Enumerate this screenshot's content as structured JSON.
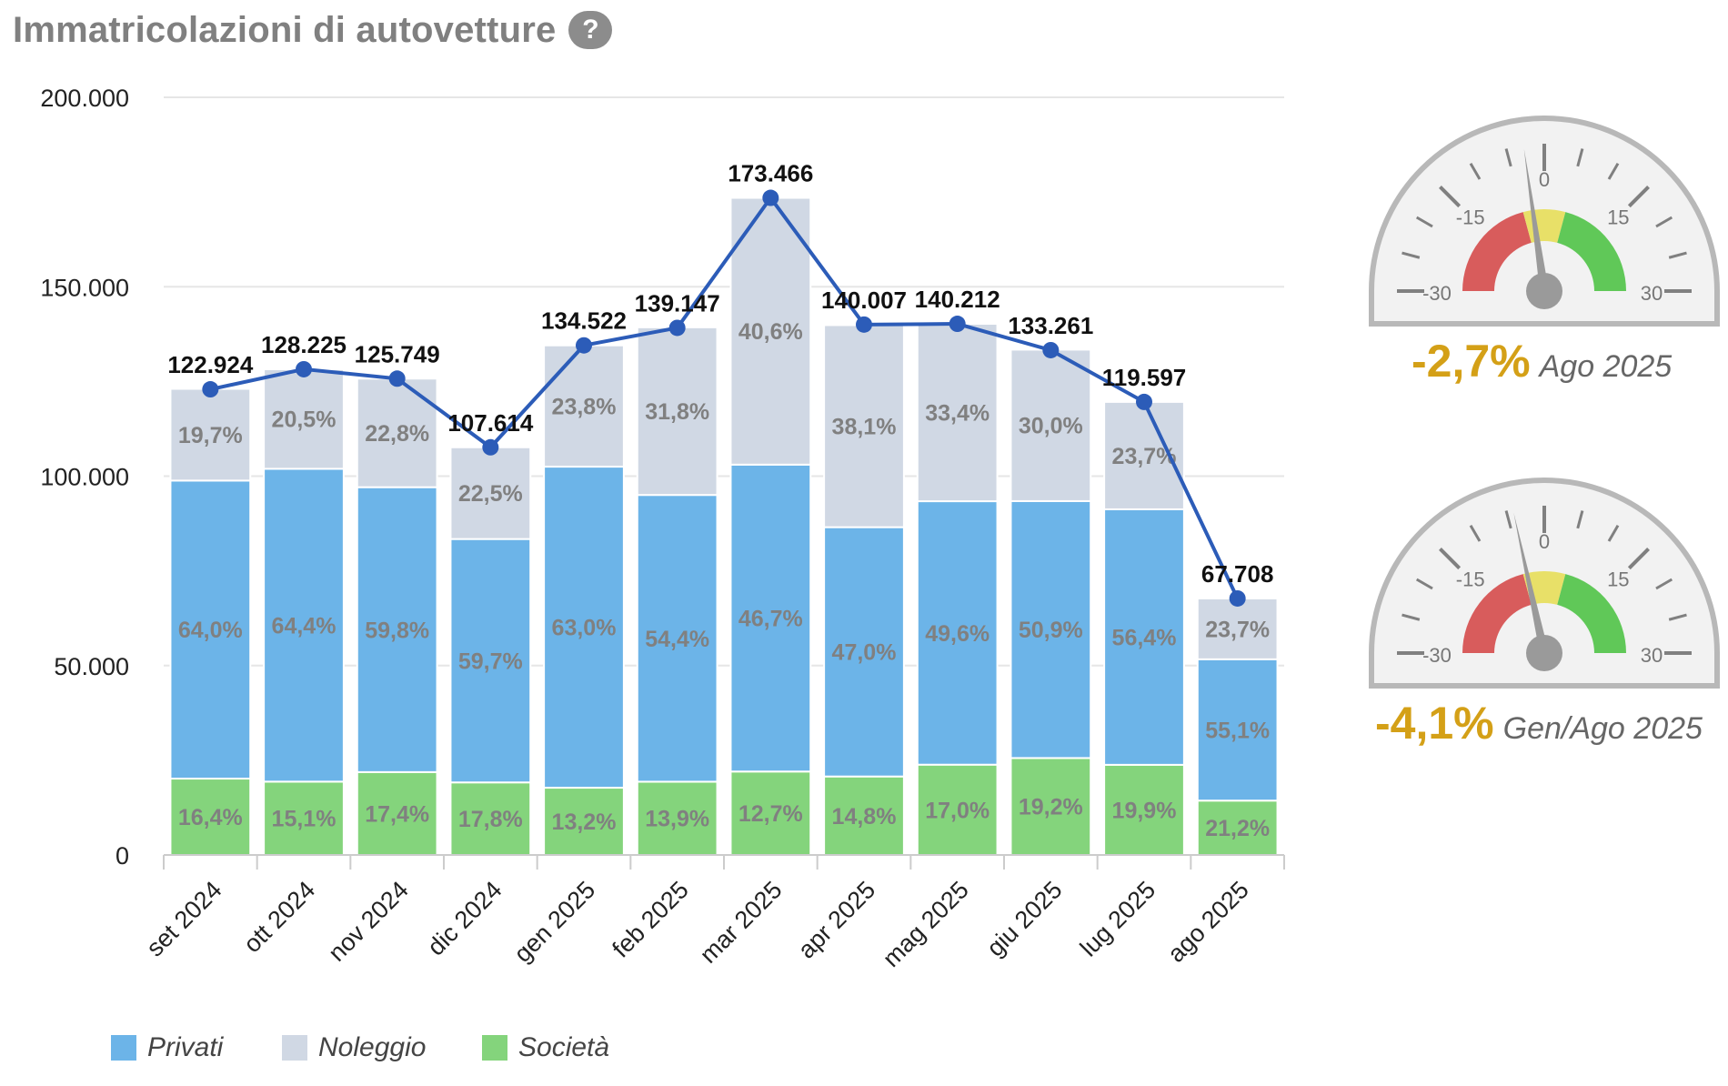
{
  "title": "Immatricolazioni di autovetture",
  "help_label": "?",
  "colors": {
    "privati": "#6cb4e8",
    "noleggio": "#d0d8e4",
    "societa": "#84d47c",
    "line": "#2c5cb8",
    "axis_text": "#222222",
    "pct_text": "#808080",
    "gauge_red": "#d85c5c",
    "gauge_yellow": "#e8e068",
    "gauge_green": "#60c858",
    "caption_pct": "#d4a017"
  },
  "legend": [
    {
      "label": "Privati",
      "color": "#6cb4e8"
    },
    {
      "label": "Noleggio",
      "color": "#d0d8e4"
    },
    {
      "label": "Società",
      "color": "#84d47c"
    }
  ],
  "chart_data": {
    "type": "bar",
    "stacked": true,
    "categories": [
      "set 2024",
      "ott 2024",
      "nov 2024",
      "dic 2024",
      "gen 2025",
      "feb 2025",
      "mar 2025",
      "apr 2025",
      "mag 2025",
      "giu 2025",
      "lug 2025",
      "ago 2025"
    ],
    "totals": [
      122924,
      128225,
      125749,
      107614,
      134522,
      139147,
      173466,
      140007,
      140212,
      133261,
      119597,
      67708
    ],
    "total_labels": [
      "122.924",
      "128.225",
      "125.749",
      "107.614",
      "134.522",
      "139.147",
      "173.466",
      "140.007",
      "140.212",
      "133.261",
      "119.597",
      "67.708"
    ],
    "series": [
      {
        "name": "Privati",
        "percents": [
          64.0,
          64.4,
          59.8,
          59.7,
          63.0,
          54.4,
          46.7,
          47.0,
          49.6,
          50.9,
          56.4,
          55.1
        ],
        "labels": [
          "64,0%",
          "64,4%",
          "59,8%",
          "59,7%",
          "63,0%",
          "54,4%",
          "46,7%",
          "47,0%",
          "49,6%",
          "50,9%",
          "56,4%",
          "55,1%"
        ]
      },
      {
        "name": "Noleggio",
        "percents": [
          19.7,
          20.5,
          22.8,
          22.5,
          23.8,
          31.8,
          40.6,
          38.1,
          33.4,
          30.0,
          23.7,
          23.7
        ],
        "labels": [
          "19,7%",
          "20,5%",
          "22,8%",
          "22,5%",
          "23,8%",
          "31,8%",
          "40,6%",
          "38,1%",
          "33,4%",
          "30,0%",
          "23,7%",
          "23,7%"
        ]
      },
      {
        "name": "Società",
        "percents": [
          16.4,
          15.1,
          17.4,
          17.8,
          13.2,
          13.9,
          12.7,
          14.8,
          17.0,
          19.2,
          19.9,
          21.2
        ],
        "labels": [
          "16,4%",
          "15,1%",
          "17,4%",
          "17,8%",
          "13,2%",
          "13,9%",
          "12,7%",
          "14,8%",
          "17,0%",
          "19,2%",
          "19,9%",
          "21,2%"
        ]
      }
    ],
    "ylim": [
      0,
      200000
    ],
    "yticks": [
      0,
      50000,
      100000,
      150000,
      200000
    ],
    "ytick_labels": [
      "0",
      "50.000",
      "100.000",
      "150.000",
      "200.000"
    ],
    "grid": true,
    "legend_position": "bottom-left"
  },
  "gauges": [
    {
      "value": -2.7,
      "value_label": "-2,7%",
      "period": "Ago 2025",
      "ticks": [
        "-30",
        "-15",
        "0",
        "15",
        "30"
      ],
      "range": [
        -30,
        30
      ]
    },
    {
      "value": -4.1,
      "value_label": "-4,1%",
      "period": "Gen/Ago 2025",
      "ticks": [
        "-30",
        "-15",
        "0",
        "15",
        "30"
      ],
      "range": [
        -30,
        30
      ]
    }
  ]
}
